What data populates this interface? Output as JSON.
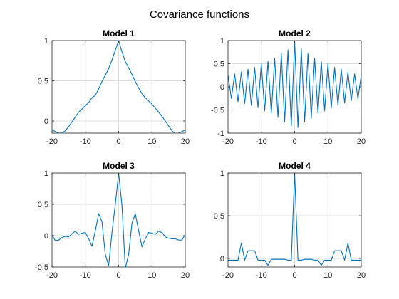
{
  "figure": {
    "title": "Covariance functions"
  },
  "colors": {
    "line": "#0072bd",
    "grid": "#dfdfdf",
    "axis": "#262626",
    "background": "#ffffff"
  },
  "chart_data": [
    {
      "type": "line",
      "title": "Model 1",
      "xlim": [
        -20,
        20
      ],
      "ylim": [
        -0.15,
        1
      ],
      "xticks": [
        -20,
        -10,
        0,
        10,
        20
      ],
      "yticks": [
        0,
        0.5,
        1
      ],
      "grid": true,
      "x": [
        -20,
        -19,
        -18,
        -17,
        -16,
        -15,
        -14,
        -13,
        -12,
        -11,
        -10,
        -9,
        -8,
        -7,
        -6,
        -5,
        -4,
        -3,
        -2,
        -1,
        0,
        1,
        2,
        3,
        4,
        5,
        6,
        7,
        8,
        9,
        10,
        11,
        12,
        13,
        14,
        15,
        16,
        17,
        18,
        19,
        20
      ],
      "y": [
        -0.11,
        -0.13,
        -0.15,
        -0.15,
        -0.12,
        -0.07,
        -0.01,
        0.05,
        0.11,
        0.15,
        0.19,
        0.23,
        0.29,
        0.32,
        0.4,
        0.49,
        0.57,
        0.65,
        0.76,
        0.88,
        1.0,
        0.86,
        0.74,
        0.66,
        0.58,
        0.49,
        0.41,
        0.34,
        0.29,
        0.25,
        0.21,
        0.16,
        0.11,
        0.06,
        0.0,
        -0.06,
        -0.12,
        -0.16,
        -0.15,
        -0.13,
        -0.11
      ]
    },
    {
      "type": "line",
      "title": "Model 2",
      "xlim": [
        -20,
        20
      ],
      "ylim": [
        -1,
        1
      ],
      "xticks": [
        -20,
        -10,
        0,
        10,
        20
      ],
      "yticks": [
        -1,
        -0.5,
        0,
        0.5,
        1
      ],
      "grid": true,
      "x": [
        -20,
        -19,
        -18,
        -17,
        -16,
        -15,
        -14,
        -13,
        -12,
        -11,
        -10,
        -9,
        -8,
        -7,
        -6,
        -5,
        -4,
        -3,
        -2,
        -1,
        0,
        1,
        2,
        3,
        4,
        5,
        6,
        7,
        8,
        9,
        10,
        11,
        12,
        13,
        14,
        15,
        16,
        17,
        18,
        19,
        20
      ],
      "y": [
        0.25,
        -0.25,
        0.28,
        -0.32,
        0.32,
        -0.36,
        0.38,
        -0.4,
        0.42,
        -0.45,
        0.5,
        -0.52,
        0.55,
        -0.57,
        0.62,
        -0.66,
        0.72,
        -0.76,
        0.8,
        -0.85,
        1.0,
        -0.88,
        0.82,
        -0.76,
        0.72,
        -0.68,
        0.62,
        -0.57,
        0.55,
        -0.52,
        0.5,
        -0.46,
        0.42,
        -0.4,
        0.38,
        -0.35,
        0.32,
        -0.3,
        0.28,
        -0.26,
        0.25
      ]
    },
    {
      "type": "line",
      "title": "Model 3",
      "xlim": [
        -20,
        20
      ],
      "ylim": [
        -0.5,
        1
      ],
      "xticks": [
        -20,
        -10,
        0,
        10,
        20
      ],
      "yticks": [
        -0.5,
        0,
        0.5,
        1
      ],
      "grid": true,
      "x": [
        -20,
        -19,
        -18,
        -17,
        -16,
        -15,
        -14,
        -13,
        -12,
        -11,
        -10,
        -9,
        -8,
        -7,
        -6,
        -5,
        -4,
        -3,
        -2,
        -1,
        0,
        1,
        2,
        3,
        4,
        5,
        6,
        7,
        8,
        9,
        10,
        11,
        12,
        13,
        14,
        15,
        16,
        17,
        18,
        19,
        20
      ],
      "y": [
        0.01,
        -0.08,
        -0.07,
        -0.03,
        -0.01,
        -0.02,
        0.03,
        0.07,
        0.02,
        0.04,
        0.05,
        -0.05,
        -0.17,
        0.08,
        0.35,
        0.22,
        -0.3,
        -0.48,
        0.05,
        0.5,
        1.0,
        0.48,
        -0.52,
        -0.3,
        0.2,
        0.35,
        0.08,
        -0.18,
        -0.05,
        0.05,
        0.04,
        0.02,
        0.07,
        0.05,
        -0.02,
        -0.04,
        -0.05,
        -0.05,
        -0.07,
        -0.07,
        0.02
      ]
    },
    {
      "type": "line",
      "title": "Model 4",
      "xlim": [
        -20,
        20
      ],
      "ylim": [
        -0.1,
        1
      ],
      "xticks": [
        -20,
        -10,
        0,
        10,
        20
      ],
      "yticks": [
        0,
        0.5,
        1
      ],
      "grid": true,
      "x": [
        -20,
        -19,
        -18,
        -17,
        -16,
        -15,
        -14,
        -13,
        -12,
        -11,
        -10,
        -9,
        -8,
        -7,
        -6,
        -5,
        -4,
        -3,
        -2,
        -1,
        0,
        1,
        2,
        3,
        4,
        5,
        6,
        7,
        8,
        9,
        10,
        11,
        12,
        13,
        14,
        15,
        16,
        17,
        18,
        19,
        20
      ],
      "y": [
        -0.02,
        -0.02,
        -0.02,
        -0.02,
        0.18,
        -0.02,
        0.09,
        0.09,
        0.09,
        -0.02,
        -0.02,
        -0.02,
        -0.08,
        -0.01,
        -0.01,
        -0.01,
        -0.01,
        -0.01,
        -0.02,
        -0.02,
        1.0,
        -0.02,
        -0.02,
        -0.01,
        -0.01,
        -0.01,
        -0.02,
        -0.02,
        -0.08,
        -0.02,
        -0.02,
        -0.02,
        0.09,
        0.09,
        0.09,
        -0.02,
        0.18,
        -0.02,
        -0.02,
        -0.02,
        -0.02
      ]
    }
  ]
}
